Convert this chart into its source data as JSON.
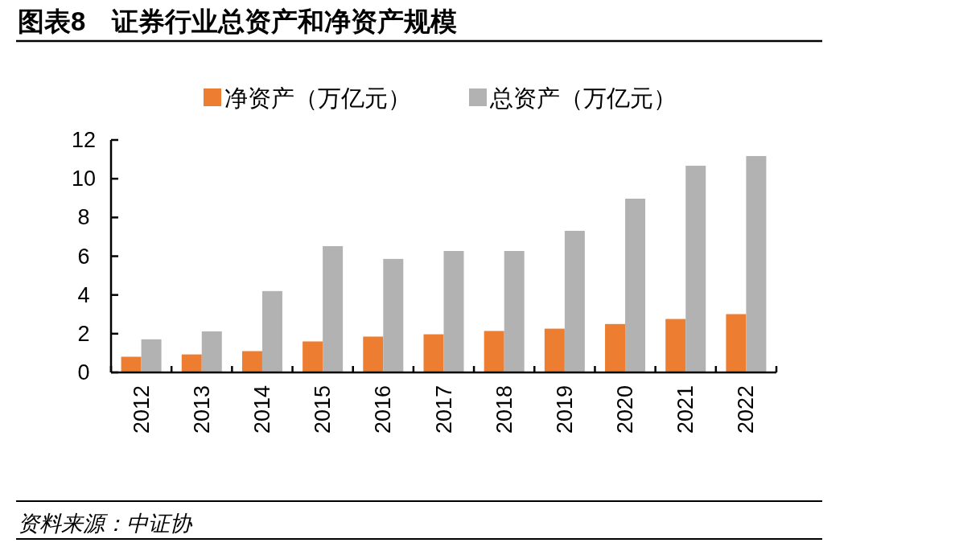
{
  "chart_data": {
    "type": "bar",
    "title": "图表8　证券行业总资产和净资产规模",
    "categories": [
      "2012",
      "2013",
      "2014",
      "2015",
      "2016",
      "2017",
      "2018",
      "2019",
      "2020",
      "2021",
      "2022"
    ],
    "series": [
      {
        "name": "净资产（万亿元）",
        "color": "#ed7d31",
        "values": [
          0.81,
          0.93,
          1.1,
          1.6,
          1.85,
          1.97,
          2.14,
          2.26,
          2.5,
          2.76,
          3.01
        ]
      },
      {
        "name": "总资产（万亿元）",
        "color": "#b2b2b2",
        "values": [
          1.71,
          2.12,
          4.2,
          6.52,
          5.86,
          6.27,
          6.27,
          7.31,
          8.97,
          10.67,
          11.17
        ]
      }
    ],
    "ylim": [
      0,
      12
    ],
    "yticks": [
      0,
      2,
      4,
      6,
      8,
      10,
      12
    ],
    "legend": "top",
    "annotations": [
      "资料来源：中证协"
    ]
  }
}
